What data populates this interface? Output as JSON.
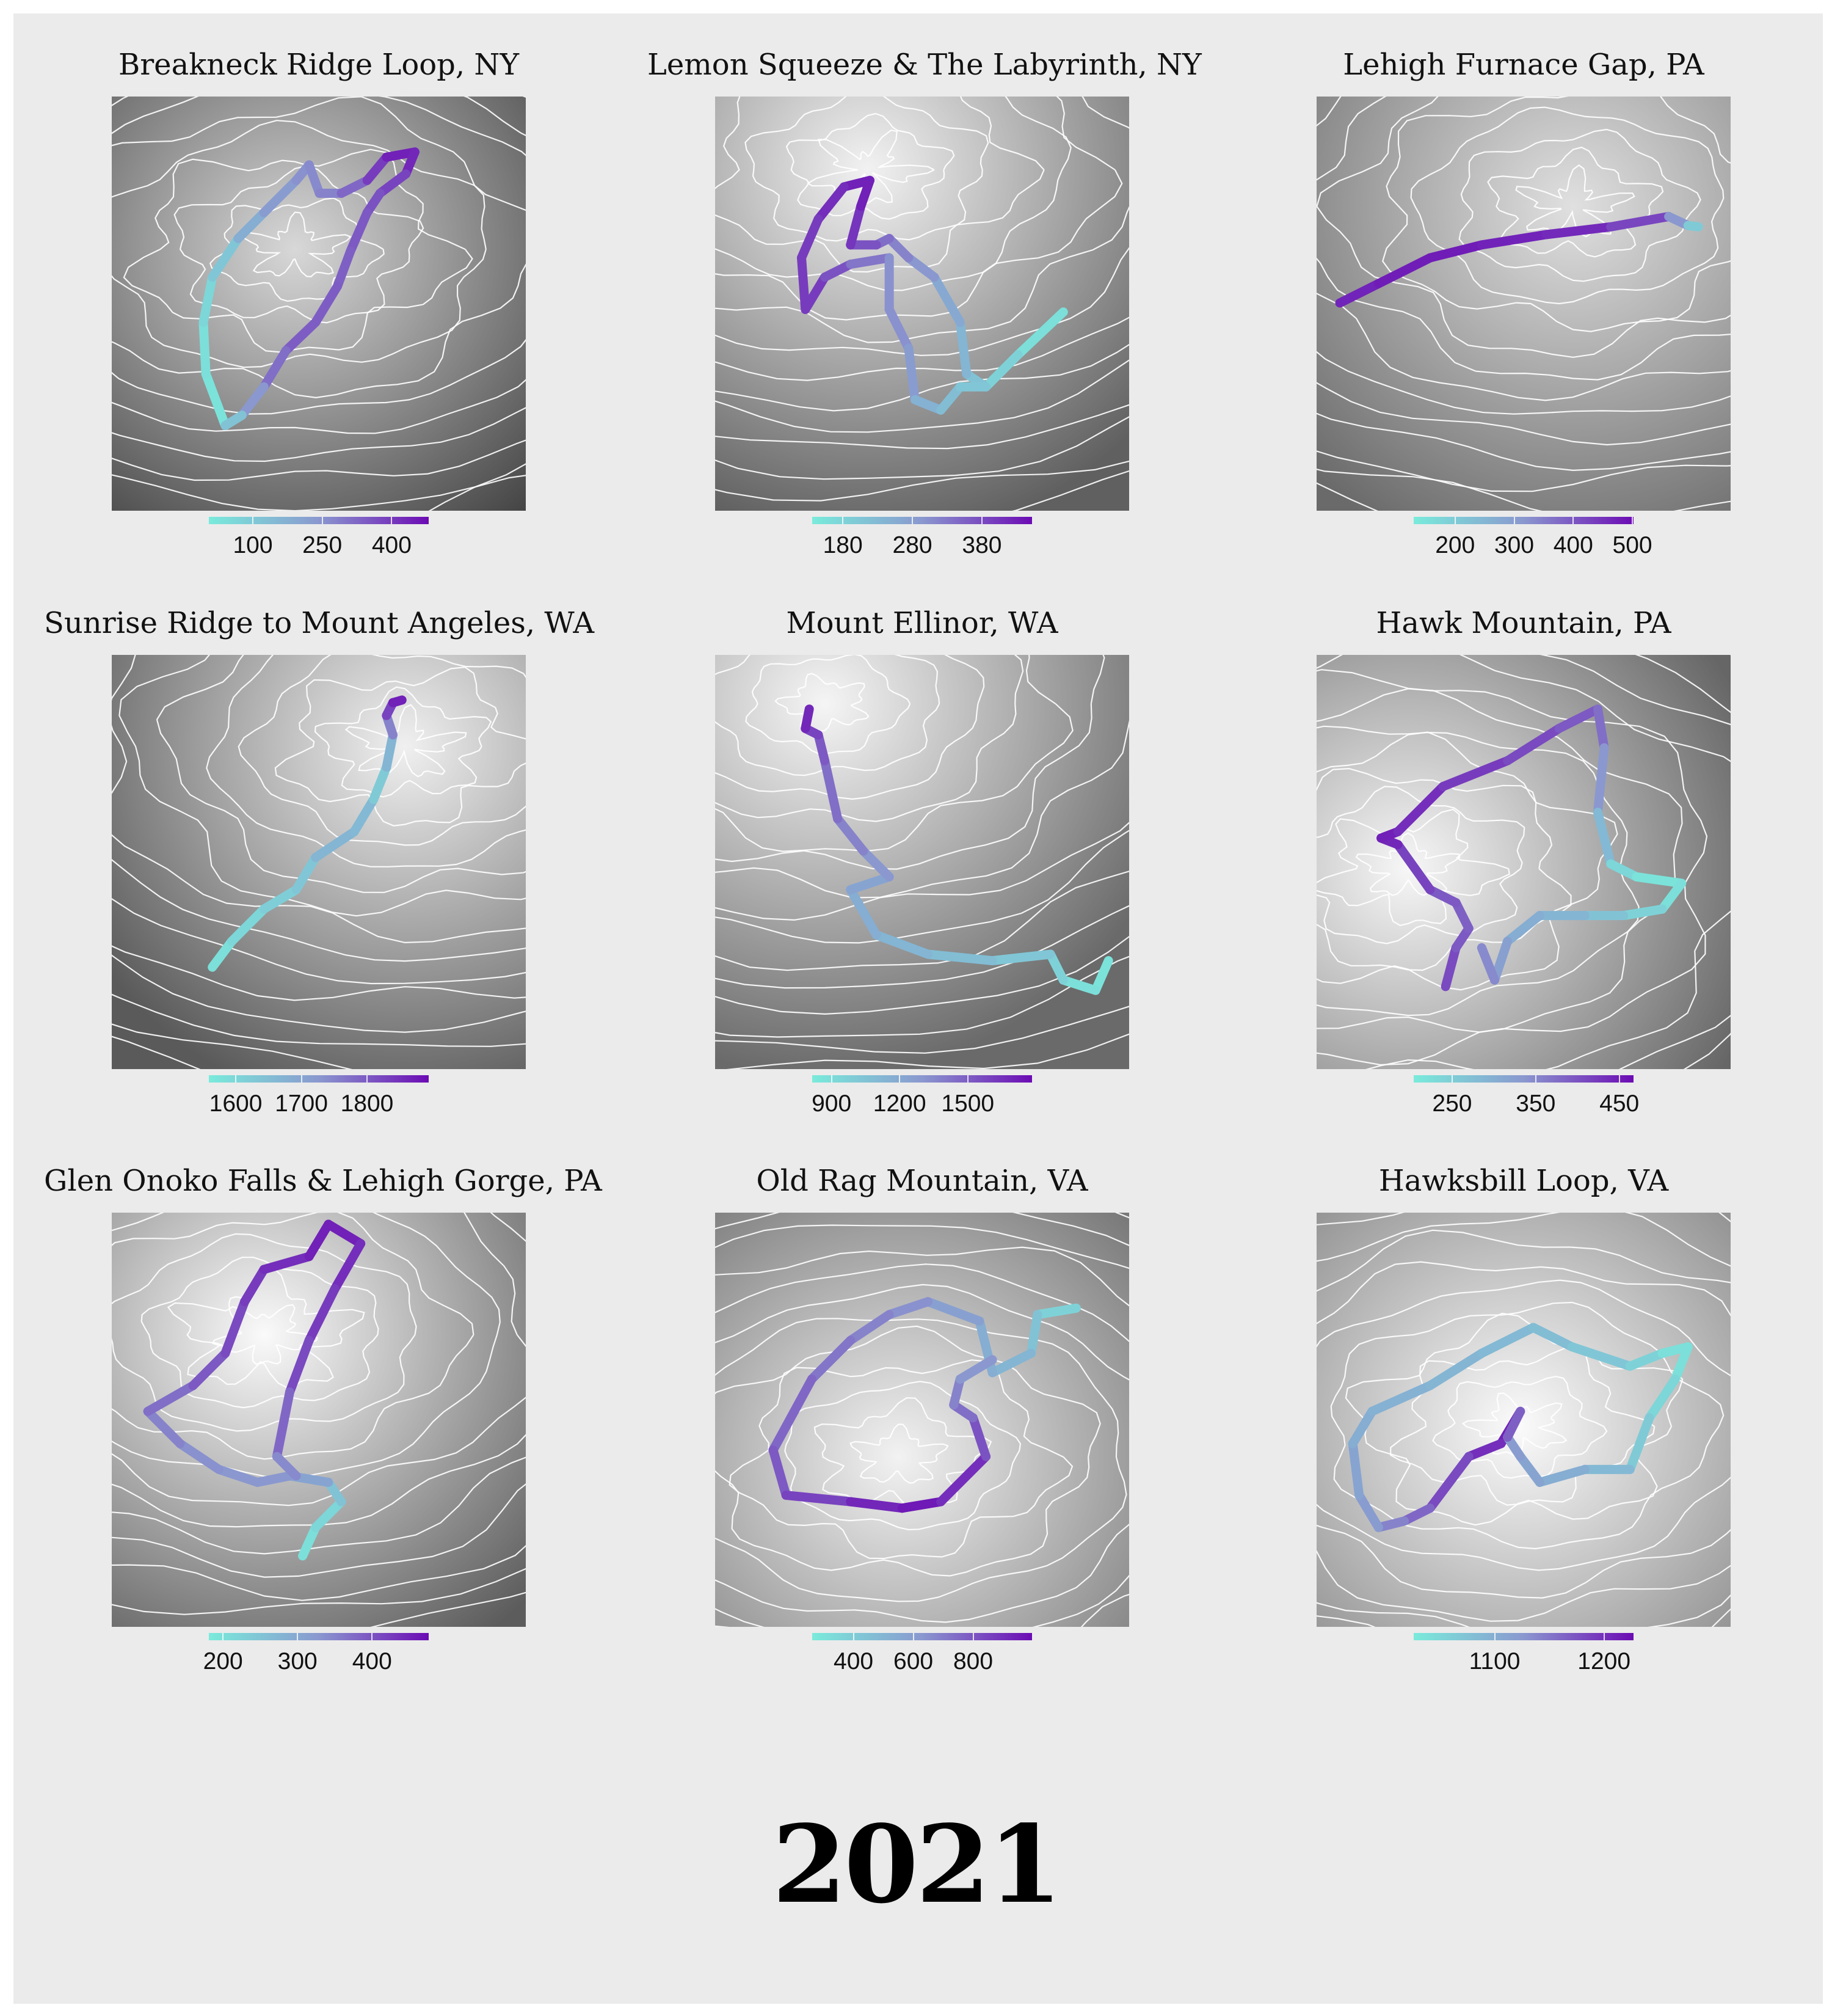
{
  "year_label": "2021",
  "color_scale": {
    "low": "#79ebdb",
    "mid": "#8a98cf",
    "high": "#6c0bb4"
  },
  "map_style": {
    "contour_color": "#ffffff",
    "terrain": "grayscale hillshade"
  },
  "chart_data": {
    "type": "faceted-map",
    "legend_placement": "bottom",
    "panels": [
      {
        "title": "Breakneck Ridge Loop, NY",
        "legend_ticks": [
          100,
          250,
          400
        ],
        "elevation_range": [
          5,
          480
        ]
      },
      {
        "title": "Lemon Squeeze & The Labyrinth, NY",
        "legend_ticks": [
          180,
          280,
          380
        ],
        "elevation_range": [
          136,
          452
        ]
      },
      {
        "title": "Lehigh Furnace Gap, PA",
        "legend_ticks": [
          200,
          300,
          400,
          500
        ],
        "elevation_range": [
          130,
          502
        ]
      },
      {
        "title": "Sunrise Ridge to Mount Angeles, WA",
        "legend_ticks": [
          1600,
          1700,
          1800
        ],
        "elevation_range": [
          1559,
          1894
        ]
      },
      {
        "title": "Mount Ellinor, WA",
        "legend_ticks": [
          900,
          1200,
          1500
        ],
        "elevation_range": [
          815,
          1783
        ]
      },
      {
        "title": "Hawk Mountain, PA",
        "legend_ticks": [
          250,
          350,
          450
        ],
        "elevation_range": [
          204,
          467
        ]
      },
      {
        "title": "Glen Onoko Falls & Lehigh Gorge, PA",
        "legend_ticks": [
          200,
          300,
          400
        ],
        "elevation_range": [
          181,
          476
        ]
      },
      {
        "title": "Old Rag Mountain, VA",
        "legend_ticks": [
          400,
          600,
          800
        ],
        "elevation_range": [
          262,
          997
        ]
      },
      {
        "title": "Hawksbill Loop, VA",
        "legend_ticks": [
          1100,
          1200
        ],
        "elevation_range": [
          1026,
          1227
        ]
      }
    ]
  }
}
